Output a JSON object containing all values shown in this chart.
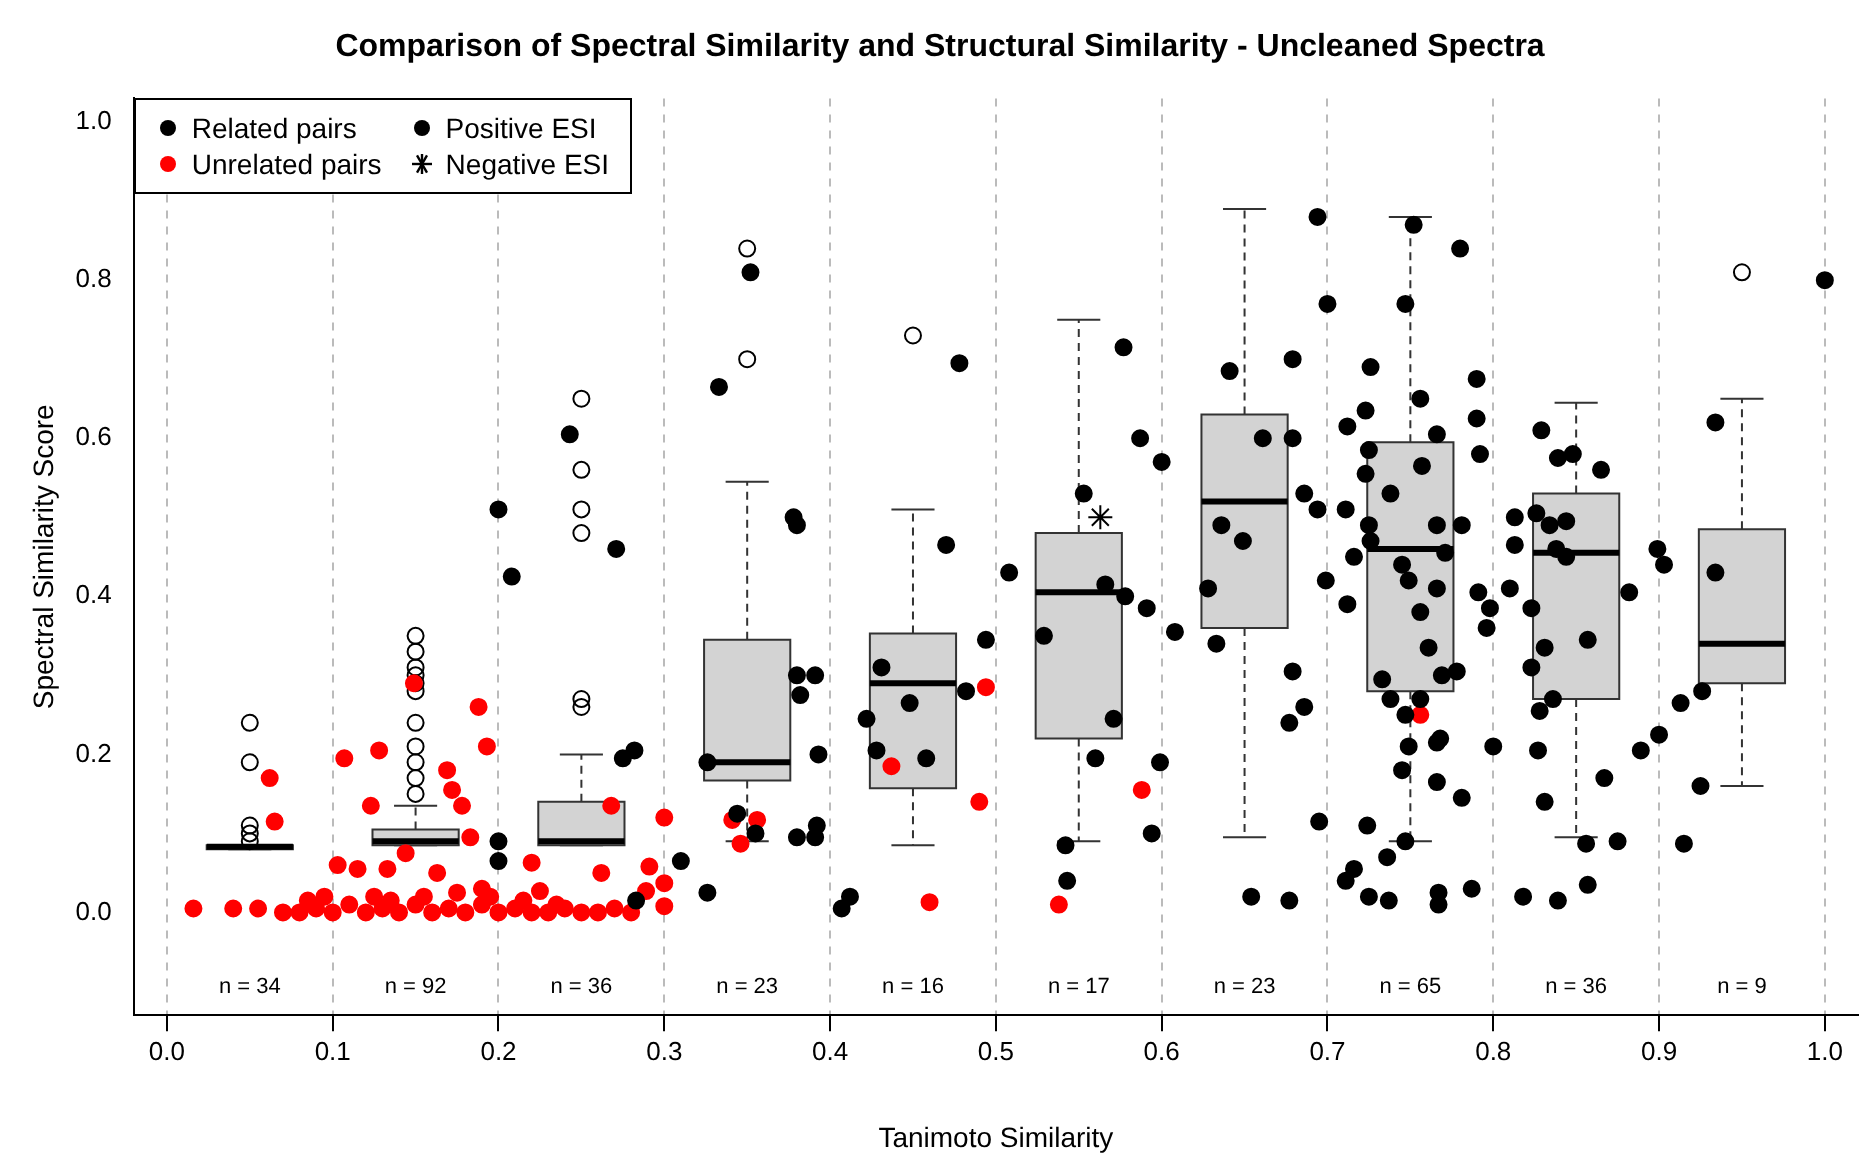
{
  "chart_data": {
    "type": "scatter",
    "title": "Comparison of Spectral Similarity and Structural Similarity - Uncleaned Spectra",
    "xlabel": "Tanimoto Similarity",
    "ylabel": "Spectral Similarity Score",
    "xlim": [
      -0.02,
      1.02
    ],
    "ylim": [
      -0.13,
      1.03
    ],
    "xticks": [
      {
        "value": 0,
        "label": "0.0"
      },
      {
        "value": 0.1,
        "label": "0.1"
      },
      {
        "value": 0.2,
        "label": "0.2"
      },
      {
        "value": 0.3,
        "label": "0.3"
      },
      {
        "value": 0.4,
        "label": "0.4"
      },
      {
        "value": 0.5,
        "label": "0.5"
      },
      {
        "value": 0.6,
        "label": "0.6"
      },
      {
        "value": 0.7,
        "label": "0.7"
      },
      {
        "value": 0.8,
        "label": "0.8"
      },
      {
        "value": 0.9,
        "label": "0.9"
      },
      {
        "value": 1,
        "label": "1.0"
      }
    ],
    "yticks": [
      {
        "value": 0,
        "label": "0.0"
      },
      {
        "value": 0.2,
        "label": "0.2"
      },
      {
        "value": 0.4,
        "label": "0.4"
      },
      {
        "value": 0.6,
        "label": "0.6"
      },
      {
        "value": 0.8,
        "label": "0.8"
      },
      {
        "value": 1,
        "label": "1.0"
      }
    ],
    "grid": "x",
    "legend": "top left",
    "series": [
      {
        "type": "box",
        "color": "#d3d3d3",
        "x": [
          0.05,
          0.15,
          0.25,
          0.35,
          0.45,
          0.55,
          0.65,
          0.75,
          0.85,
          0.95
        ],
        "boxes": [
          {
            "low": 0.08,
            "q1": 0.08,
            "median": 0.083,
            "q3": 0.085,
            "high": 0.085,
            "outliers": [
              0.24,
              0.19,
              0.11,
              0.1,
              0.09
            ]
          },
          {
            "low": 0.085,
            "q1": 0.085,
            "median": 0.09,
            "q3": 0.105,
            "high": 0.135,
            "outliers": [
              0.35,
              0.33,
              0.31,
              0.3,
              0.29,
              0.28,
              0.24,
              0.21,
              0.19,
              0.17,
              0.15
            ]
          },
          {
            "low": 0.085,
            "q1": 0.085,
            "median": 0.09,
            "q3": 0.14,
            "high": 0.2,
            "outliers": [
              0.65,
              0.56,
              0.51,
              0.48,
              0.27,
              0.26
            ]
          },
          {
            "low": 0.09,
            "q1": 0.167,
            "median": 0.19,
            "q3": 0.345,
            "high": 0.545,
            "outliers": [
              0.84,
              0.7
            ]
          },
          {
            "low": 0.085,
            "q1": 0.157,
            "median": 0.29,
            "q3": 0.353,
            "high": 0.51,
            "outliers": [
              0.73
            ]
          },
          {
            "low": 0.09,
            "q1": 0.22,
            "median": 0.405,
            "q3": 0.48,
            "high": 0.75
          },
          {
            "low": 0.095,
            "q1": 0.36,
            "median": 0.52,
            "q3": 0.63,
            "high": 0.89
          },
          {
            "low": 0.09,
            "q1": 0.28,
            "median": 0.46,
            "q3": 0.595,
            "high": 0.88
          },
          {
            "low": 0.095,
            "q1": 0.27,
            "median": 0.455,
            "q3": 0.53,
            "high": 0.645
          },
          {
            "low": 0.16,
            "q1": 0.29,
            "median": 0.34,
            "q3": 0.485,
            "high": 0.65,
            "outliers": [
              0.81
            ]
          }
        ]
      },
      {
        "type": "scatter",
        "name": "Related pairs",
        "color": "#000000",
        "marker": "circle",
        "x": [
          0.2,
          0.208,
          0.2,
          0.2,
          0.243,
          0.271,
          0.275,
          0.282,
          0.283,
          0.31,
          0.326,
          0.326,
          0.333,
          0.352,
          0.344,
          0.355,
          0.378,
          0.38,
          0.38,
          0.391,
          0.382,
          0.393,
          0.38,
          0.391,
          0.392,
          0.407,
          0.412,
          0.422,
          0.428,
          0.431,
          0.448,
          0.458,
          0.47,
          0.478,
          0.482,
          0.494,
          0.508,
          0.529,
          0.542,
          0.543,
          0.553,
          0.56,
          0.566,
          0.571,
          0.578,
          0.577,
          0.587,
          0.591,
          0.6,
          0.599,
          0.594,
          0.608,
          0.628,
          0.633,
          0.641,
          0.636,
          0.649,
          0.661,
          0.679,
          0.679,
          0.686,
          0.694,
          0.694,
          0.7,
          0.699,
          0.679,
          0.686,
          0.677,
          0.654,
          0.677,
          0.695,
          0.712,
          0.711,
          0.724,
          0.716,
          0.711,
          0.725,
          0.737,
          0.736,
          0.747,
          0.726,
          0.712,
          0.723,
          0.725,
          0.723,
          0.725,
          0.726,
          0.716,
          0.738,
          0.747,
          0.752,
          0.78,
          0.756,
          0.757,
          0.766,
          0.745,
          0.749,
          0.766,
          0.771,
          0.766,
          0.781,
          0.756,
          0.761,
          0.778,
          0.769,
          0.733,
          0.738,
          0.747,
          0.756,
          0.749,
          0.766,
          0.768,
          0.745,
          0.766,
          0.781,
          0.767,
          0.767,
          0.787,
          0.79,
          0.79,
          0.792,
          0.791,
          0.796,
          0.798,
          0.8,
          0.813,
          0.813,
          0.81,
          0.823,
          0.829,
          0.839,
          0.848,
          0.865,
          0.826,
          0.834,
          0.844,
          0.838,
          0.844,
          0.823,
          0.831,
          0.857,
          0.836,
          0.828,
          0.827,
          0.867,
          0.831,
          0.856,
          0.875,
          0.818,
          0.839,
          0.857,
          0.882,
          0.899,
          0.889,
          0.903,
          0.9,
          0.913,
          0.926,
          0.925,
          0.915,
          0.934,
          0.934,
          1.0
        ],
        "values": [
          0.51,
          0.425,
          0.09,
          0.065,
          0.605,
          0.46,
          0.195,
          0.205,
          0.015,
          0.065,
          0.025,
          0.19,
          0.665,
          0.81,
          0.125,
          0.1,
          0.5,
          0.49,
          0.3,
          0.3,
          0.275,
          0.2,
          0.095,
          0.095,
          0.11,
          0.005,
          0.02,
          0.245,
          0.205,
          0.31,
          0.265,
          0.195,
          0.465,
          0.695,
          0.28,
          0.345,
          0.43,
          0.35,
          0.085,
          0.04,
          0.53,
          0.195,
          0.415,
          0.245,
          0.4,
          0.715,
          0.6,
          0.385,
          0.57,
          0.19,
          0.1,
          0.355,
          0.41,
          0.34,
          0.685,
          0.49,
          0.47,
          0.6,
          0.7,
          0.6,
          0.53,
          0.51,
          0.88,
          0.77,
          0.42,
          0.305,
          0.26,
          0.24,
          0.02,
          0.015,
          0.115,
          0.39,
          0.51,
          0.11,
          0.055,
          0.04,
          0.02,
          0.015,
          0.07,
          0.09,
          0.69,
          0.615,
          0.635,
          0.585,
          0.555,
          0.49,
          0.47,
          0.45,
          0.53,
          0.77,
          0.87,
          0.84,
          0.65,
          0.565,
          0.605,
          0.44,
          0.42,
          0.49,
          0.455,
          0.41,
          0.49,
          0.38,
          0.335,
          0.305,
          0.3,
          0.295,
          0.27,
          0.25,
          0.27,
          0.21,
          0.215,
          0.22,
          0.18,
          0.165,
          0.145,
          0.025,
          0.01,
          0.03,
          0.675,
          0.625,
          0.58,
          0.405,
          0.36,
          0.385,
          0.21,
          0.5,
          0.465,
          0.41,
          0.385,
          0.61,
          0.575,
          0.58,
          0.56,
          0.505,
          0.49,
          0.495,
          0.46,
          0.45,
          0.31,
          0.335,
          0.345,
          0.27,
          0.255,
          0.205,
          0.17,
          0.14,
          0.087,
          0.09,
          0.02,
          0.015,
          0.035,
          0.405,
          0.46,
          0.205,
          0.44,
          0.225,
          0.265,
          0.28,
          0.16,
          0.087,
          0.43,
          0.62,
          0.8
        ]
      },
      {
        "type": "scatter",
        "name": "Unrelated pairs",
        "color": "#ff0000",
        "marker": "circle",
        "x": [
          0.016,
          0.04,
          0.062,
          0.065,
          0.107,
          0.128,
          0.123,
          0.149,
          0.103,
          0.115,
          0.133,
          0.144,
          0.169,
          0.172,
          0.178,
          0.188,
          0.193,
          0.183,
          0.163,
          0.19,
          0.22,
          0.225,
          0.268,
          0.262,
          0.291,
          0.3,
          0.3,
          0.3,
          0.289,
          0.341,
          0.346,
          0.356,
          0.437,
          0.46,
          0.49,
          0.494,
          0.538,
          0.588,
          0.756,
          0.055,
          0.07,
          0.08,
          0.09,
          0.1,
          0.11,
          0.12,
          0.13,
          0.14,
          0.15,
          0.16,
          0.17,
          0.18,
          0.19,
          0.2,
          0.21,
          0.22,
          0.23,
          0.24,
          0.25,
          0.26,
          0.27,
          0.28,
          0.085,
          0.095,
          0.125,
          0.135,
          0.155,
          0.175,
          0.195,
          0.215,
          0.235
        ],
        "values": [
          0.005,
          0.005,
          0.17,
          0.115,
          0.195,
          0.205,
          0.135,
          0.29,
          0.06,
          0.055,
          0.055,
          0.075,
          0.18,
          0.155,
          0.135,
          0.26,
          0.21,
          0.095,
          0.05,
          0.03,
          0.063,
          0.027,
          0.135,
          0.05,
          0.058,
          0.12,
          0.037,
          0.008,
          0.027,
          0.117,
          0.087,
          0.117,
          0.185,
          0.013,
          0.14,
          0.285,
          0.01,
          0.155,
          0.25,
          0.005,
          0,
          0,
          0.005,
          0,
          0.01,
          0,
          0.005,
          0,
          0.01,
          0,
          0.005,
          0,
          0.01,
          0,
          0.005,
          0,
          0,
          0.005,
          0,
          0,
          0.005,
          0,
          0.015,
          0.02,
          0.02,
          0.015,
          0.02,
          0.025,
          0.02,
          0.015,
          0.01
        ]
      },
      {
        "type": "scatter",
        "name": "Positive ESI",
        "color": "#000000",
        "marker": "circle"
      },
      {
        "type": "scatter",
        "name": "Negative ESI",
        "color": "#000000",
        "marker": "cross",
        "x": [
          0.563
        ],
        "values": [
          0.5
        ]
      }
    ],
    "annotations": [
      "n = 34",
      "n = 92",
      "n = 36",
      "n = 23",
      "n = 16",
      "n = 17",
      "n = 23",
      "n = 65",
      "n = 36",
      "n = 9"
    ]
  }
}
